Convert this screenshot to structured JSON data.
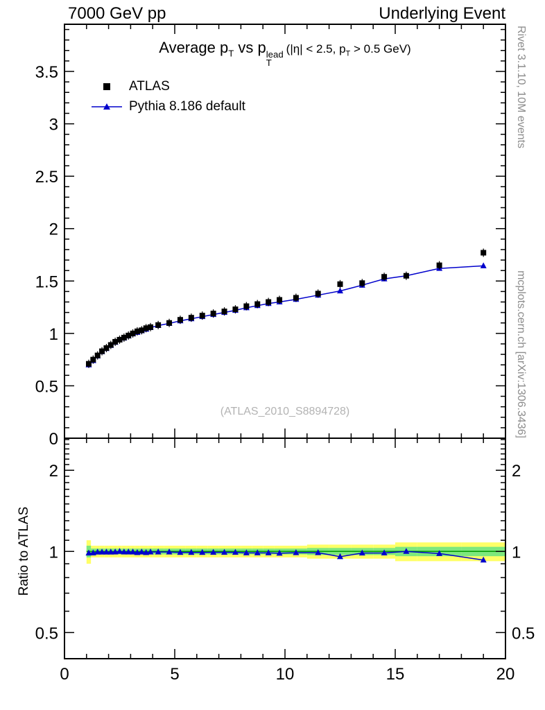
{
  "header": {
    "left": "7000 GeV pp",
    "right": "Underlying Event"
  },
  "side_notes": {
    "top": "Rivet 3.1.10,  10M events",
    "bottom": "mcplots.cern.ch [arXiv:1306.3436]"
  },
  "main_panel": {
    "title_segments": {
      "pre": "Average p",
      "sub1": "T",
      "mid": " vs p",
      "sup2": "lead",
      "sub2": "T",
      "cond_pre": "(|η| < 2.5, p",
      "cond_sub": "T",
      "cond_post": " > 0.5 GeV)"
    },
    "watermark": "(ATLAS_2010_S8894728)"
  },
  "ratio_panel": {
    "ylabel": "Ratio to ATLAS"
  },
  "legend": {
    "items": [
      {
        "label": "ATLAS",
        "marker": "black-square"
      },
      {
        "label": "Pythia 8.186 default",
        "marker": "blue-triangle-line"
      }
    ]
  },
  "colors": {
    "atlas": "#000000",
    "pythia": "#0000cc",
    "band_yellow": "#ffff66",
    "band_green": "#7de87d",
    "ref_line": "#009900",
    "frame": "#000000",
    "muted_text": "#8c8c8c",
    "watermark_text": "#b3b3b3"
  },
  "chart_data": [
    {
      "id": "main",
      "type": "scatter",
      "title": "Average pT vs pT^lead (|η| < 2.5, pT > 0.5 GeV)",
      "xlabel": "",
      "ylabel": "",
      "xlim": [
        0,
        20
      ],
      "ylim": [
        0,
        3.95
      ],
      "xticks": [
        0,
        5,
        10,
        15,
        20
      ],
      "yticks": [
        0,
        0.5,
        1,
        1.5,
        2,
        2.5,
        3,
        3.5
      ],
      "ytick_labels": [
        "0",
        "0.5",
        "1",
        "1.5",
        "2",
        "2.5",
        "3",
        "3.5"
      ],
      "legend_position": "upper-left",
      "grid": false,
      "x": [
        1.1,
        1.3,
        1.5,
        1.7,
        1.9,
        2.1,
        2.3,
        2.5,
        2.7,
        2.9,
        3.1,
        3.3,
        3.5,
        3.7,
        3.9,
        4.25,
        4.75,
        5.25,
        5.75,
        6.25,
        6.75,
        7.25,
        7.75,
        8.25,
        8.75,
        9.25,
        9.75,
        10.5,
        11.5,
        12.5,
        13.5,
        14.5,
        15.5,
        17,
        19
      ],
      "series": [
        {
          "name": "ATLAS",
          "marker": "square",
          "color": "#000000",
          "values": [
            0.71,
            0.75,
            0.79,
            0.83,
            0.86,
            0.89,
            0.92,
            0.94,
            0.96,
            0.98,
            1.0,
            1.02,
            1.03,
            1.05,
            1.06,
            1.08,
            1.1,
            1.13,
            1.15,
            1.17,
            1.19,
            1.21,
            1.23,
            1.26,
            1.28,
            1.3,
            1.32,
            1.34,
            1.38,
            1.47,
            1.48,
            1.54,
            1.55,
            1.65,
            1.77
          ]
        },
        {
          "name": "Pythia 8.186 default",
          "marker": "triangle",
          "color": "#0000cc",
          "line": true,
          "values": [
            0.7,
            0.74,
            0.785,
            0.825,
            0.855,
            0.885,
            0.915,
            0.94,
            0.955,
            0.975,
            0.995,
            1.01,
            1.025,
            1.04,
            1.055,
            1.075,
            1.095,
            1.12,
            1.14,
            1.16,
            1.18,
            1.2,
            1.22,
            1.245,
            1.265,
            1.285,
            1.3,
            1.325,
            1.365,
            1.405,
            1.46,
            1.52,
            1.55,
            1.62,
            1.645
          ]
        }
      ]
    },
    {
      "id": "ratio",
      "type": "line",
      "ylabel": "Ratio to ATLAS",
      "yscale": "log",
      "xlim": [
        0,
        20
      ],
      "ylim": [
        0.4,
        2.63
      ],
      "xticks": [
        0,
        5,
        10,
        15,
        20
      ],
      "xtick_labels": [
        "0",
        "5",
        "10",
        "15",
        "20"
      ],
      "yticks": [
        0.5,
        1,
        2
      ],
      "ytick_labels": [
        "0.5",
        "1",
        "2"
      ],
      "grid": false,
      "x": [
        1.1,
        1.3,
        1.5,
        1.7,
        1.9,
        2.1,
        2.3,
        2.5,
        2.7,
        2.9,
        3.1,
        3.3,
        3.5,
        3.7,
        3.9,
        4.25,
        4.75,
        5.25,
        5.75,
        6.25,
        6.75,
        7.25,
        7.75,
        8.25,
        8.75,
        9.25,
        9.75,
        10.5,
        11.5,
        12.5,
        13.5,
        14.5,
        15.5,
        17,
        19
      ],
      "bin_edges": [
        1.0,
        1.2,
        1.4,
        1.6,
        1.8,
        2.0,
        2.2,
        2.4,
        2.6,
        2.8,
        3.0,
        3.2,
        3.4,
        3.6,
        3.8,
        4.0,
        4.5,
        5.0,
        5.5,
        6.0,
        6.5,
        7.0,
        7.5,
        8.0,
        8.5,
        9.0,
        9.5,
        10.0,
        11.0,
        12.0,
        13.0,
        14.0,
        15.0,
        16.0,
        18.0,
        20.0
      ],
      "values": [
        0.986,
        0.987,
        0.994,
        0.994,
        0.994,
        0.994,
        0.995,
        1.0,
        0.995,
        0.995,
        0.995,
        0.99,
        0.995,
        0.99,
        0.995,
        0.995,
        0.995,
        0.991,
        0.991,
        0.991,
        0.992,
        0.992,
        0.992,
        0.988,
        0.988,
        0.988,
        0.985,
        0.989,
        0.989,
        0.956,
        0.986,
        0.987,
        1.0,
        0.982,
        0.929
      ],
      "band_yellow_half": [
        0.1,
        0.05,
        0.05,
        0.05,
        0.05,
        0.05,
        0.05,
        0.05,
        0.05,
        0.05,
        0.05,
        0.05,
        0.05,
        0.05,
        0.05,
        0.05,
        0.05,
        0.05,
        0.05,
        0.05,
        0.05,
        0.05,
        0.05,
        0.05,
        0.05,
        0.05,
        0.05,
        0.05,
        0.06,
        0.06,
        0.06,
        0.06,
        0.08,
        0.08,
        0.08
      ],
      "band_green_half": [
        0.05,
        0.025,
        0.025,
        0.025,
        0.025,
        0.025,
        0.025,
        0.025,
        0.025,
        0.025,
        0.025,
        0.025,
        0.025,
        0.025,
        0.025,
        0.025,
        0.025,
        0.025,
        0.025,
        0.025,
        0.025,
        0.025,
        0.025,
        0.025,
        0.025,
        0.025,
        0.025,
        0.025,
        0.03,
        0.03,
        0.03,
        0.03,
        0.04,
        0.04,
        0.04
      ],
      "reference_line": 1.0
    }
  ]
}
